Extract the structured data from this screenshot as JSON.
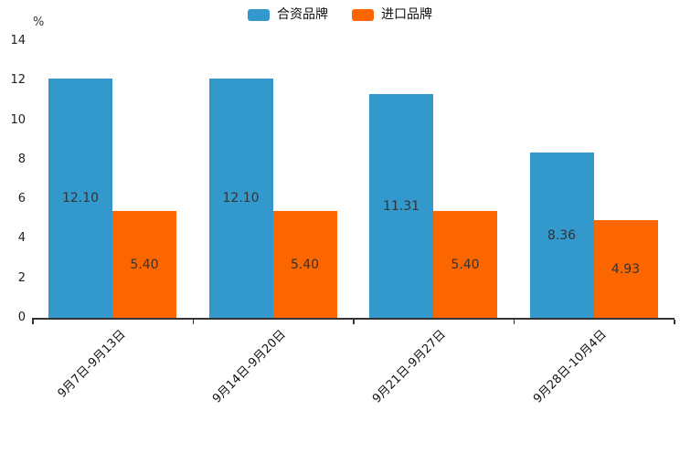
{
  "chart": {
    "background_color": "#ffffff",
    "axis_color": "#333333",
    "text_color": "#111111",
    "value_label_color": "#333333"
  },
  "chart_data": {
    "type": "bar",
    "title": "",
    "xlabel": "",
    "ylabel": "%",
    "ylim": [
      0,
      14
    ],
    "yticks": [
      0,
      2,
      4,
      6,
      8,
      10,
      12,
      14
    ],
    "grid": false,
    "legend_position": "top-center",
    "bar_label_position": "inside-center",
    "x_label_rotation_deg": 45,
    "categories": [
      "9月7日-9月13日",
      "9月14日-9月20日",
      "9月21日-9月27日",
      "9月28日-10月4日"
    ],
    "series": [
      {
        "name": "合资品牌",
        "color": "#3398cc",
        "values": [
          12.1,
          12.1,
          11.31,
          8.36
        ],
        "labels": [
          "12.10",
          "12.10",
          "11.31",
          "8.36"
        ]
      },
      {
        "name": "进口品牌",
        "color": "#fc6600",
        "values": [
          5.4,
          5.4,
          5.4,
          4.93
        ],
        "labels": [
          "5.40",
          "5.40",
          "5.40",
          "4.93"
        ]
      }
    ]
  }
}
